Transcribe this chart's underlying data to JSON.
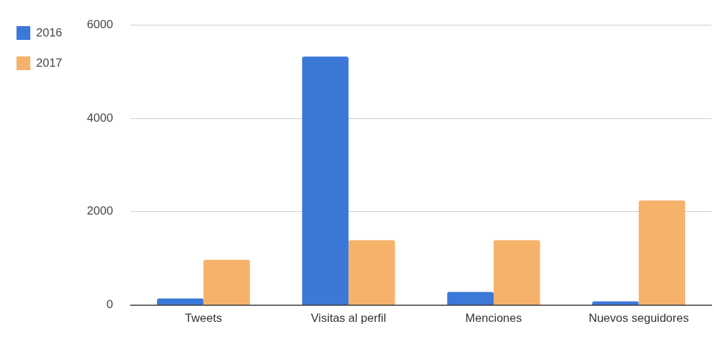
{
  "chart_data": {
    "type": "bar",
    "categories": [
      "Tweets",
      "Visitas al perfil",
      "Menciones",
      "Nuevos seguidores"
    ],
    "series": [
      {
        "name": "2016",
        "color": "#3c78d8",
        "values": [
          140,
          5320,
          280,
          80
        ]
      },
      {
        "name": "2017",
        "color": "#f6b26b",
        "values": [
          970,
          1390,
          1390,
          2240
        ]
      }
    ],
    "ylim": [
      0,
      6000
    ],
    "yticks": [
      0,
      2000,
      4000,
      6000
    ],
    "grid": "y",
    "legend": "top left"
  }
}
